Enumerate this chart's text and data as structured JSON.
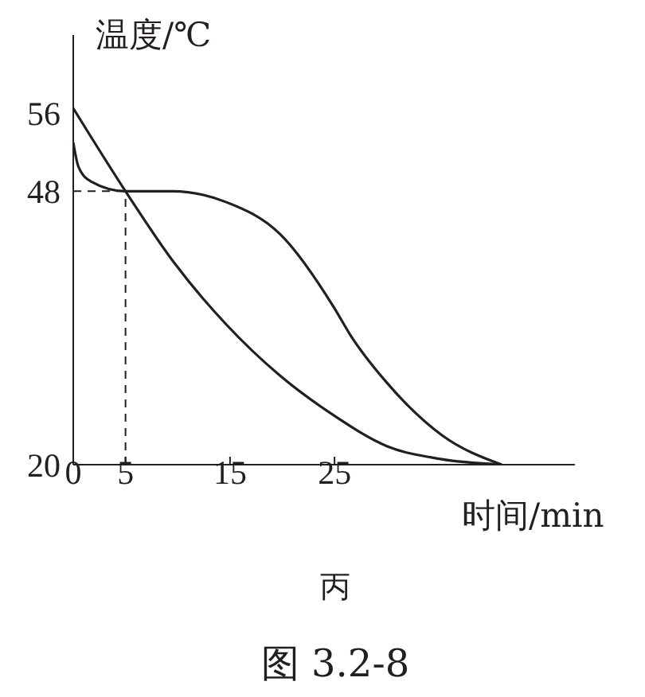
{
  "chart_data": {
    "type": "line",
    "xlabel": "时间/min",
    "ylabel": "温度/℃",
    "series": [
      {
        "color": "#231f20",
        "x": [
          0,
          5,
          9.5,
          14.6,
          19.8,
          25,
          30,
          35,
          41
        ],
        "values": [
          56.5,
          48,
          40.9,
          34.4,
          29.1,
          25,
          21.9,
          20.6,
          20
        ]
      },
      {
        "color": "#231f20",
        "x": [
          0,
          0.5,
          1.7,
          5,
          9.5,
          14.6,
          19.8,
          25,
          26.5,
          30,
          35.3,
          41
        ],
        "values": [
          53,
          50.5,
          49,
          48,
          48,
          46.9,
          43.6,
          36,
          33.3,
          28.4,
          23,
          20
        ]
      }
    ],
    "xlim": [
      0,
      48
    ],
    "xticks": [
      0,
      5,
      15,
      25
    ],
    "ylim": [
      20,
      64
    ],
    "yticks": [
      20,
      48,
      56
    ],
    "ref_lines": [
      {
        "axis": "y",
        "value": 48,
        "line_style": "dashed"
      },
      {
        "axis": "x",
        "value": 5,
        "line_style": "dashed"
      }
    ],
    "grid": false,
    "legend": false,
    "marker": "none",
    "line_style": "solid",
    "annotations": [
      "丙",
      "图 3.2-8"
    ]
  }
}
